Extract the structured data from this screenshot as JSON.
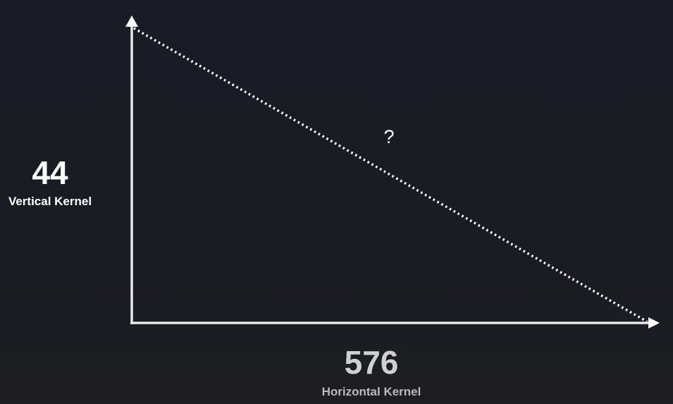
{
  "diagram": {
    "vertical_side": {
      "value": "44",
      "caption": "Vertical Kernel"
    },
    "horizontal_side": {
      "value": "576",
      "caption": "Horizontal Kernel"
    },
    "hypotenuse": {
      "label": "?"
    },
    "colors": {
      "background": "#1a1c24",
      "axis": "#e8e8ea",
      "hypotenuse": "#ffffff",
      "vertical_text": "#ffffff",
      "horizontal_text": "#cfd0d3"
    }
  }
}
